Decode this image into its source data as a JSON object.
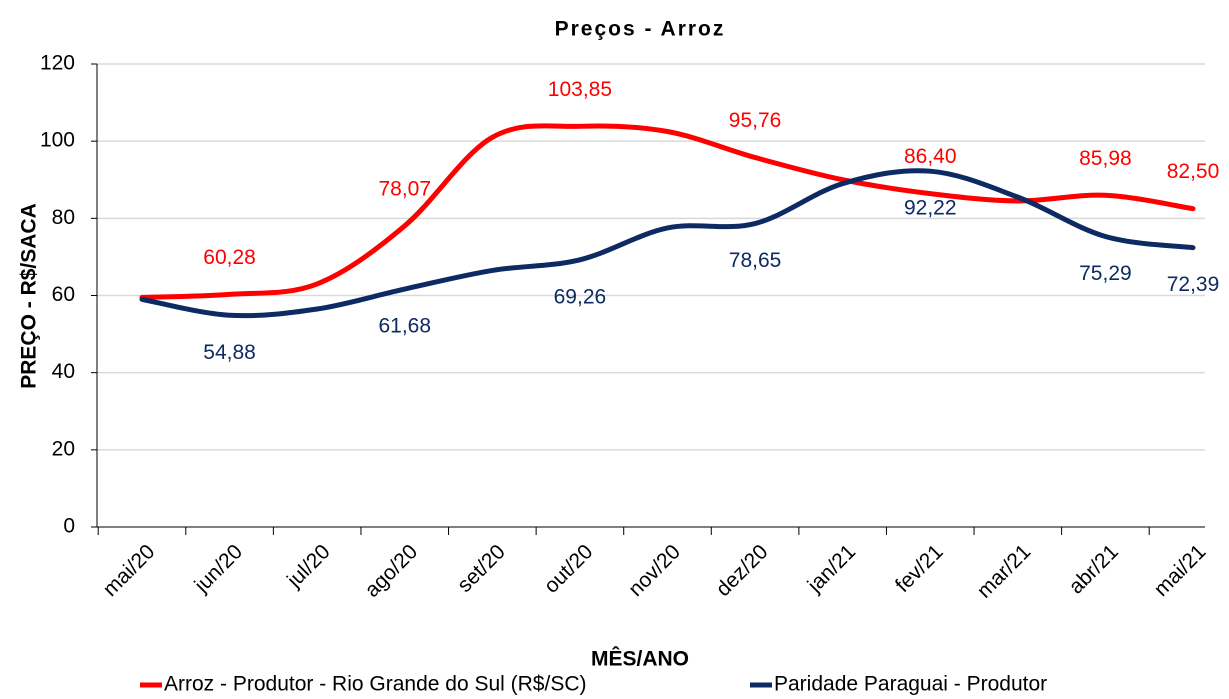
{
  "chart_data": {
    "type": "line",
    "title": "Preços - Arroz",
    "x_label": "MÊS/ANO",
    "y_label": "PREÇO - R$/SACA",
    "categories": [
      "mai/20",
      "jun/20",
      "jul/20",
      "ago/20",
      "set/20",
      "out/20",
      "nov/20",
      "dez/20",
      "jan/21",
      "fev/21",
      "mar/21",
      "abr/21",
      "mai/21"
    ],
    "series": [
      {
        "name": "Arroz - Produtor - Rio Grande do Sul (R$/SC)",
        "color": "#ff0000",
        "values": [
          59.5,
          60.28,
          63,
          78.07,
          101,
          103.85,
          102.5,
          95.76,
          90,
          86.4,
          84.5,
          85.98,
          82.5
        ],
        "value_labels": [
          null,
          "60,28",
          null,
          "78,07",
          null,
          "103,85",
          null,
          "95,76",
          null,
          "86,40",
          null,
          "85,98",
          "82,50"
        ]
      },
      {
        "name": "Paridade Paraguai - Produtor",
        "color": "#0d2a63",
        "values": [
          59,
          54.88,
          56.5,
          61.68,
          66.5,
          69.26,
          77.5,
          78.65,
          89,
          92.22,
          85.5,
          75.29,
          72.39
        ],
        "value_labels": [
          null,
          "54,88",
          null,
          "61,68",
          null,
          "69,26",
          null,
          "78,65",
          null,
          "92,22",
          null,
          "75,29",
          "72,39"
        ]
      }
    ],
    "ylim": [
      0,
      120
    ],
    "yticks": [
      0,
      20,
      40,
      60,
      80,
      100,
      120
    ],
    "grid": true
  }
}
